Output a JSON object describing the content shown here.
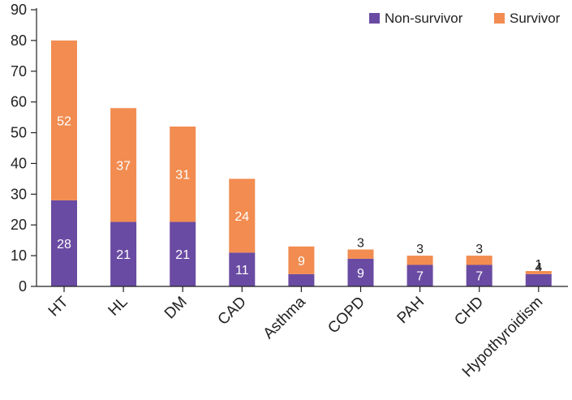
{
  "chart_data": {
    "type": "bar",
    "stacked": true,
    "categories": [
      "HT",
      "HL",
      "DM",
      "CAD",
      "Asthma",
      "COPD",
      "PAH",
      "CHD",
      "Hypothyroidism"
    ],
    "series": [
      {
        "name": "Non-survivor",
        "color": "#6a4ba3",
        "values": [
          28,
          21,
          21,
          11,
          4,
          9,
          7,
          7,
          4
        ]
      },
      {
        "name": "Survivor",
        "color": "#f28c50",
        "values": [
          52,
          37,
          31,
          24,
          9,
          3,
          3,
          3,
          1
        ]
      }
    ],
    "ylim": [
      0,
      90
    ],
    "yticks": [
      0,
      10,
      20,
      30,
      40,
      50,
      60,
      70,
      80,
      90
    ],
    "legend_position": "top-right",
    "grid": false,
    "data_label_color_inside": "#ffffff",
    "data_label_color_outside": "#222222"
  }
}
